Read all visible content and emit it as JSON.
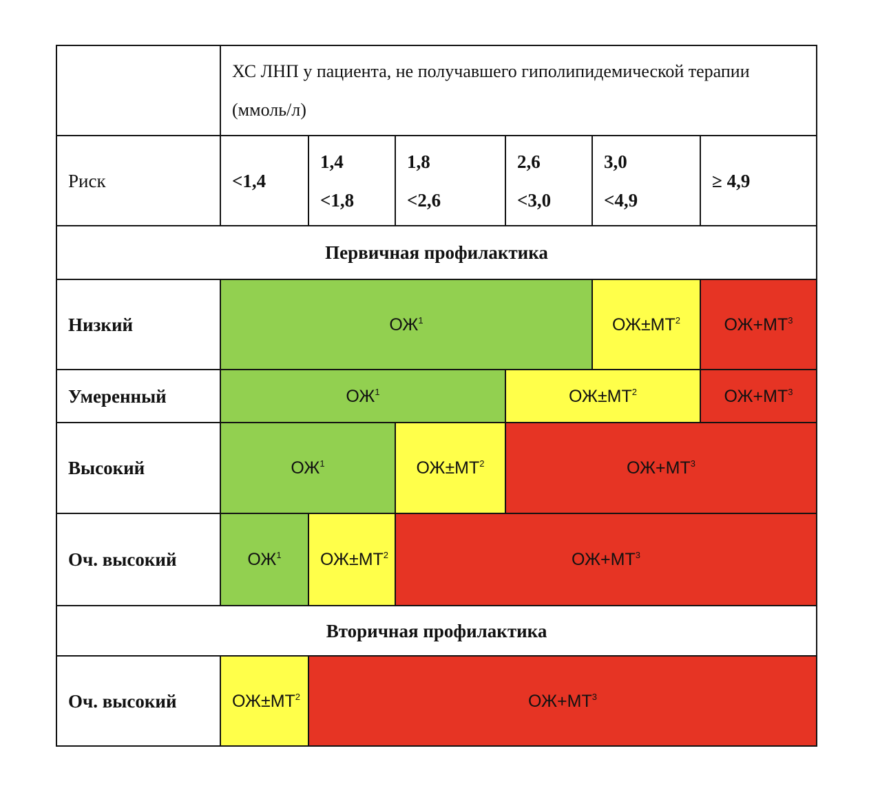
{
  "header": {
    "title": "ХС ЛНП у пациента, не получавшего гиполипидемической терапии (ммоль/л)"
  },
  "ranges": {
    "label": "Риск",
    "values": [
      "<1,4",
      "1,4 <1,8",
      "1,8 <2,6",
      "2,6 <3,0",
      "3,0 <4,9",
      "≥ 4,9"
    ]
  },
  "sections": [
    {
      "title": "Первичная профилактика",
      "rows": [
        {
          "risk": "Низкий",
          "cells": [
            {
              "text": "ОЖ",
              "sup": "1"
            },
            {
              "text": "ОЖ±МТ",
              "sup": "2"
            },
            {
              "text": "ОЖ+МТ",
              "sup": "3"
            }
          ]
        },
        {
          "risk": "Умеренный",
          "cells": [
            {
              "text": "ОЖ",
              "sup": "1"
            },
            {
              "text": "ОЖ±МТ",
              "sup": "2"
            },
            {
              "text": "ОЖ+МТ",
              "sup": "3"
            }
          ]
        },
        {
          "risk": "Высокий",
          "cells": [
            {
              "text": "ОЖ",
              "sup": "1"
            },
            {
              "text": "ОЖ±МТ",
              "sup": "2"
            },
            {
              "text": "ОЖ+МТ",
              "sup": "3"
            }
          ]
        },
        {
          "risk": "Оч. высокий",
          "cells": [
            {
              "text": "ОЖ",
              "sup": "1"
            },
            {
              "text": "ОЖ±МТ",
              "sup": "2"
            },
            {
              "text": "ОЖ+МТ",
              "sup": "3"
            }
          ]
        }
      ]
    },
    {
      "title": "Вторичная профилактика",
      "rows": [
        {
          "risk": "Оч. высокий",
          "cells": [
            {
              "text": "ОЖ±МТ",
              "sup": "2"
            },
            {
              "text": "ОЖ+МТ",
              "sup": "3"
            }
          ]
        }
      ]
    }
  ]
}
